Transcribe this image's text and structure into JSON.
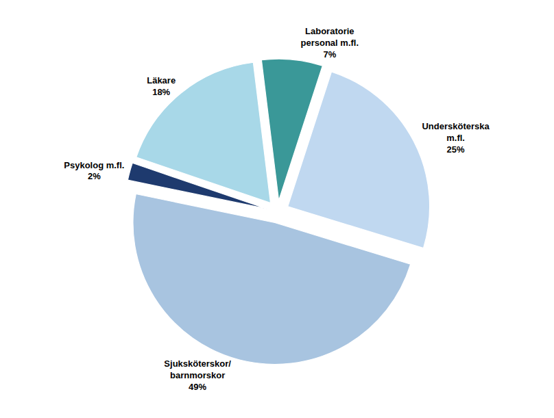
{
  "chart_data": {
    "type": "pie",
    "categories": [
      "Laboratorie\npersonal m.fl.\n7%",
      "Läkare\n18%",
      "Psykolog m.fl.\n2%",
      "Sjuksköterskor/\nbarnmorskor\n49%",
      "Undersköterska\nm.fl.\n25%"
    ],
    "values": [
      7,
      18,
      2,
      49,
      25
    ],
    "colors": [
      "#3a9898",
      "#a8d8e8",
      "#1e3a6e",
      "#a8c4e0",
      "#c0d8f0"
    ]
  }
}
